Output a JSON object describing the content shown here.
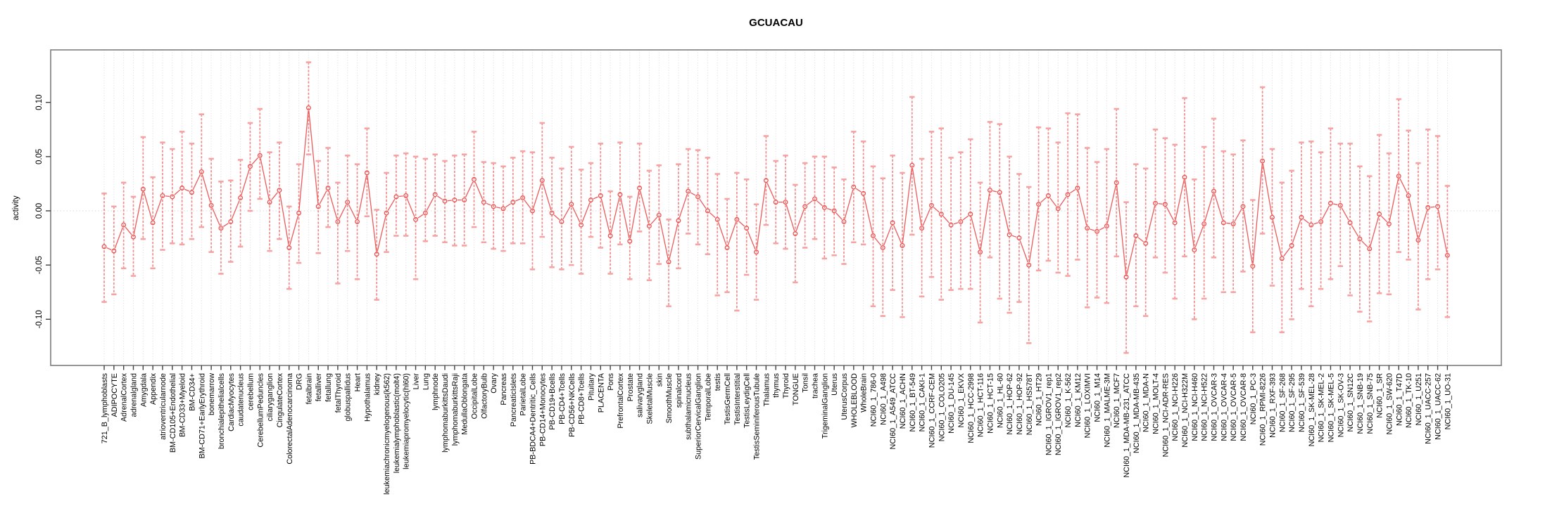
{
  "chart_data": {
    "type": "line",
    "subtype": "points-with-error-bars",
    "title": "GCUACAU",
    "ylabel": "activity",
    "xlabel": "",
    "legend": "none",
    "grid": "vertical dotted gridline per category plus dotted zero line",
    "ylim": [
      -0.143,
      0.148
    ],
    "ytick_labels": [
      "0.10",
      "0.05",
      "0.00",
      "-0.05",
      "-0.10"
    ],
    "colors": {
      "point": "#ed4f4f",
      "line": "#ed5a5a",
      "error_bar": "#f28c8c",
      "error_cap": "#f5a3a3",
      "gridline": "#d9d9d9",
      "zero_line": "#d9d9d9",
      "box_border": "#7d7d7d",
      "tick": "#404040",
      "text": "#000000",
      "background": "#ffffff"
    },
    "categories": [
      "721_B_lymphoblasts",
      "ADIPOCYTE",
      "AdrenalCortex",
      "adrenalgland",
      "Amygdala",
      "Appendix",
      "atrioventricularnode",
      "BM-CD105+Endothelial",
      "BM-CD33+Myeloid",
      "BM-CD34+",
      "BM-CD71+EarlyErythroid",
      "bonemarrow",
      "bronchialepithelialcells",
      "CardiacMyocytes",
      "caudatenucleus",
      "cerebellum",
      "CerebellumPeduncles",
      "ciliaryganglion",
      "CingulateCortex",
      "ColorectalAdenocarcinoma",
      "DRG",
      "fetalbrain",
      "fetalliver",
      "fetallung",
      "fetalThyroid",
      "globuspallidus",
      "Heart",
      "Hypothalamus",
      "kidney",
      "leukemiachronicmyelogenous(k562)",
      "leukemialymphoblastic(molt4)",
      "leukemiapromyelocytic(hl60)",
      "Liver",
      "Lung",
      "lymphnode",
      "lymphomaburkittsDaudi",
      "lymphomaburkittsRaji",
      "MedullaOblongata",
      "OccipitalLobe",
      "OlfactoryBulb",
      "Ovary",
      "Pancreas",
      "PancreaticIslets",
      "ParietalLobe",
      "PB-BDCA4+Dentritic_Cells",
      "PB-CD14+Monocytes",
      "PB-CD19+Bcells",
      "PB-CD4+Tcells",
      "PB-CD56+NKCells",
      "PB-CD8+Tcells",
      "Pituitary",
      "PLACENTA",
      "Pons",
      "PrefrontalCortex",
      "Prostate",
      "salivarygland",
      "SkeletalMuscle",
      "skin",
      "SmoothMuscle",
      "spinalcord",
      "subthalamicnucleus",
      "SuperiorCervicalGanglion",
      "TemporalLobe",
      "testis",
      "TestisGermCell",
      "TestisInterstitial",
      "TestisLeydigCell",
      "TestisSeminiferousTubule",
      "Thalamus",
      "thymus",
      "Thyroid",
      "TONGUE",
      "Tonsil",
      "trachea",
      "TrigeminalGanglion",
      "Uterus",
      "UterusCorpus",
      "WHOLEBLOOD",
      "WholeBrain",
      "NCI60_1_786-0",
      "NCI60_1_A498",
      "NCI60_1_A549_ATCC",
      "NCI60_1_ACHN",
      "NCI60_1_BT-549",
      "NCI60_1_CAKI-1",
      "NCI60_1_CCRF-CEM",
      "NCI60_1_COLO205",
      "NCI60_1_DU-145",
      "NCI60_1_EKVX",
      "NCI60_1_HCC-2998",
      "NCI60_1_HCT-116",
      "NCI60_1_HCT-15",
      "NCI60_1_HL-60",
      "NCI60_1_HOP-62",
      "NCI60_1_HOP-92",
      "NCI60_1_HS578T",
      "NCI60_1_HT29",
      "NCI60_1_IGROV1_rep1",
      "NCI60_1_IGROV1_rep2",
      "NCI60_1_K-562",
      "NCI60_1_KM12",
      "NCI60_1_LOXIMVI",
      "NCI60_1_M14",
      "NCI60_1_MALME-3M",
      "NCI60_1_MCF7",
      "NCI60_1_MDA-MB-231_ATCC",
      "NCI60_1_MDA-MB-435",
      "NCI60_1_MDA-N",
      "NCI60_1_MOLT-4",
      "NCI60_1_NCI-ADR-RES",
      "NCI60_1_NCI-H226",
      "NCI60_1_NCI-H322M",
      "NCI60_1_NCI-H460",
      "NCI60_1_NCI-H522",
      "NCI60_1_OVCAR-3",
      "NCI60_1_OVCAR-4",
      "NCI60_1_OVCAR-5",
      "NCI60_1_OVCAR-8",
      "NCI60_1_PC-3",
      "NCI60_1_RPMI-8226",
      "NCI60_1_RXF-393",
      "NCI60_1_SF-268",
      "NCI60_1_SF-295",
      "NCI60_1_SF-539",
      "NCI60_1_SK-MEL-28",
      "NCI60_1_SK-MEL-2",
      "NCI60_1_SK-MEL-5",
      "NCI60_1_SK-OV-3",
      "NCI60_1_SN12C",
      "NCI60_1_SNB-19",
      "NCI60_1_SNB-75",
      "NCI60_1_SR",
      "NCI60_1_SW-620",
      "NCI60_1_T47D",
      "NCI60_1_TK-10",
      "NCI60_1_U251",
      "NCI60_1_UACC-257",
      "NCI60_1_UACC-62",
      "NCI60_1_UO-31"
    ],
    "values": [
      -0.033,
      -0.037,
      -0.013,
      -0.024,
      0.02,
      -0.011,
      0.014,
      0.013,
      0.021,
      0.017,
      0.036,
      0.005,
      -0.016,
      -0.01,
      0.012,
      0.041,
      0.051,
      0.008,
      0.019,
      -0.034,
      -0.002,
      0.095,
      0.004,
      0.021,
      -0.01,
      0.008,
      -0.01,
      0.035,
      -0.04,
      -0.002,
      0.013,
      0.014,
      -0.008,
      -0.002,
      0.015,
      0.009,
      0.01,
      0.01,
      0.029,
      0.008,
      0.004,
      0.002,
      0.008,
      0.012,
      0.0,
      0.028,
      -0.002,
      -0.01,
      0.006,
      -0.013,
      0.01,
      0.014,
      -0.023,
      0.015,
      -0.028,
      0.021,
      -0.014,
      -0.004,
      -0.047,
      -0.009,
      0.018,
      0.013,
      0.0,
      -0.008,
      -0.034,
      -0.008,
      -0.016,
      -0.038,
      0.028,
      0.008,
      0.008,
      -0.021,
      0.004,
      0.011,
      0.003,
      0.0,
      -0.01,
      0.022,
      0.016,
      -0.023,
      -0.034,
      -0.011,
      -0.032,
      0.042,
      -0.016,
      0.005,
      -0.003,
      -0.013,
      -0.01,
      -0.003,
      -0.038,
      0.019,
      0.017,
      -0.022,
      -0.025,
      -0.05,
      0.006,
      0.014,
      0.002,
      0.015,
      0.021,
      -0.016,
      -0.019,
      -0.014,
      0.026,
      -0.061,
      -0.023,
      -0.03,
      0.007,
      0.006,
      -0.011,
      0.031,
      -0.036,
      -0.012,
      0.018,
      -0.011,
      -0.012,
      0.004,
      -0.051,
      0.046,
      -0.006,
      -0.044,
      -0.032,
      -0.006,
      -0.013,
      -0.01,
      0.007,
      0.005,
      -0.011,
      -0.026,
      -0.035,
      -0.003,
      -0.012,
      0.032,
      0.014,
      -0.027,
      0.003,
      0.004,
      -0.041
    ],
    "err_hi": [
      0.016,
      0.004,
      0.026,
      0.013,
      0.068,
      0.031,
      0.063,
      0.057,
      0.073,
      0.062,
      0.089,
      0.048,
      0.027,
      0.028,
      0.047,
      0.081,
      0.094,
      0.054,
      0.063,
      0.004,
      0.043,
      0.137,
      0.046,
      0.058,
      0.026,
      0.051,
      0.043,
      0.076,
      0.001,
      0.035,
      0.051,
      0.053,
      0.05,
      0.048,
      0.052,
      0.046,
      0.051,
      0.052,
      0.073,
      0.045,
      0.044,
      0.041,
      0.049,
      0.055,
      0.054,
      0.081,
      0.049,
      0.039,
      0.059,
      0.038,
      0.044,
      0.062,
      0.018,
      0.063,
      0.013,
      0.062,
      0.037,
      0.042,
      -0.008,
      0.043,
      0.057,
      0.056,
      0.049,
      0.034,
      0.011,
      0.035,
      0.029,
      0.006,
      0.069,
      0.046,
      0.051,
      0.024,
      0.044,
      0.05,
      0.05,
      0.04,
      0.029,
      0.073,
      0.064,
      0.041,
      0.03,
      0.051,
      0.035,
      0.105,
      0.048,
      0.073,
      0.076,
      0.049,
      0.054,
      0.066,
      0.026,
      0.082,
      0.08,
      0.05,
      0.034,
      0.022,
      0.077,
      0.076,
      0.063,
      0.09,
      0.089,
      0.058,
      0.045,
      0.057,
      0.094,
      0.008,
      0.043,
      0.039,
      0.075,
      0.067,
      0.061,
      0.104,
      0.029,
      0.059,
      0.085,
      0.055,
      0.052,
      0.065,
      0.01,
      0.114,
      0.057,
      0.026,
      0.037,
      0.063,
      0.064,
      0.054,
      0.076,
      0.062,
      0.062,
      0.041,
      0.032,
      0.07,
      0.053,
      0.103,
      0.074,
      0.044,
      0.075,
      0.069,
      0.023
    ],
    "err_lo": [
      -0.084,
      -0.077,
      -0.053,
      -0.06,
      -0.026,
      -0.053,
      -0.036,
      -0.03,
      -0.031,
      -0.026,
      -0.015,
      -0.038,
      -0.058,
      -0.047,
      -0.033,
      0.0,
      0.011,
      -0.037,
      -0.026,
      -0.072,
      -0.048,
      0.052,
      -0.039,
      -0.015,
      -0.067,
      -0.037,
      -0.063,
      -0.005,
      -0.082,
      -0.038,
      -0.023,
      -0.023,
      -0.063,
      -0.028,
      -0.023,
      -0.029,
      -0.032,
      -0.032,
      -0.015,
      -0.029,
      -0.035,
      -0.037,
      -0.03,
      -0.03,
      -0.054,
      -0.024,
      -0.052,
      -0.054,
      -0.05,
      -0.058,
      -0.024,
      -0.034,
      -0.058,
      -0.031,
      -0.063,
      -0.019,
      -0.064,
      -0.049,
      -0.088,
      -0.053,
      -0.021,
      -0.031,
      -0.04,
      -0.078,
      -0.075,
      -0.092,
      -0.059,
      -0.082,
      -0.013,
      -0.03,
      -0.035,
      -0.066,
      -0.034,
      -0.026,
      -0.044,
      -0.041,
      -0.049,
      -0.029,
      -0.031,
      -0.088,
      -0.097,
      -0.073,
      -0.098,
      -0.022,
      -0.079,
      -0.061,
      -0.082,
      -0.073,
      -0.072,
      -0.072,
      -0.103,
      -0.043,
      -0.081,
      -0.094,
      -0.084,
      -0.122,
      -0.055,
      -0.046,
      -0.057,
      -0.06,
      -0.045,
      -0.089,
      -0.08,
      -0.085,
      -0.042,
      -0.131,
      -0.088,
      -0.097,
      -0.043,
      -0.057,
      -0.081,
      -0.042,
      -0.1,
      -0.081,
      -0.043,
      -0.075,
      -0.075,
      -0.056,
      -0.112,
      -0.021,
      -0.069,
      -0.112,
      -0.1,
      -0.072,
      -0.088,
      -0.072,
      -0.063,
      -0.051,
      -0.078,
      -0.093,
      -0.102,
      -0.076,
      -0.077,
      -0.038,
      -0.045,
      -0.091,
      -0.063,
      -0.054,
      -0.098
    ]
  }
}
